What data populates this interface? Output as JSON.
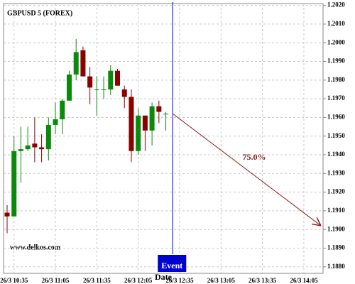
{
  "chart_data": {
    "type": "candlestick",
    "title": "GBPUSD 5 (FOREX)",
    "x_label": "Date",
    "watermark": "www.delkos.com",
    "categories": [
      null,
      "26/3 10:35",
      null,
      null,
      null,
      null,
      null,
      "26/3 11:05",
      null,
      null,
      null,
      null,
      null,
      "26/3 11:35",
      null,
      null,
      null,
      null,
      null,
      "26/3 12:05",
      null,
      null,
      null,
      null,
      null,
      "26/3 12:35",
      null,
      null,
      null,
      null,
      null,
      "26/3 13:05",
      null,
      null,
      null,
      null,
      null,
      "26/3 13:35",
      null,
      null,
      null,
      null,
      null,
      "26/3 14:05",
      null,
      null
    ],
    "open": [
      1.1909,
      1.1907,
      1.1942,
      1.1943,
      1.1946,
      1.1944,
      1.1943,
      1.1956,
      1.1959,
      1.1969,
      1.1983,
      1.1996,
      1.1982,
      1.1975,
      1.1975,
      1.1975,
      1.1985,
      1.1975,
      1.1971,
      1.1942,
      1.1961,
      1.1953,
      1.1966,
      1.1962,
      null,
      null,
      null,
      null,
      null,
      null,
      null,
      null,
      null,
      null,
      null,
      null,
      null,
      null,
      null,
      null,
      null,
      null,
      null,
      null,
      null,
      null
    ],
    "high": [
      1.1913,
      1.195,
      1.1955,
      1.1955,
      1.196,
      1.1951,
      1.196,
      1.1968,
      1.197,
      1.1985,
      1.2002,
      1.1998,
      1.1987,
      1.1982,
      1.1982,
      1.1988,
      1.1986,
      1.1977,
      1.1975,
      1.1965,
      1.1961,
      1.1968,
      1.1969,
      1.1963,
      null,
      null,
      null,
      null,
      null,
      null,
      null,
      null,
      null,
      null,
      null,
      null,
      null,
      null,
      null,
      null,
      null,
      null,
      null,
      null,
      null,
      null
    ],
    "low": [
      1.1898,
      1.1907,
      1.1925,
      1.1942,
      1.1936,
      1.1936,
      1.1937,
      1.1951,
      1.1951,
      1.1969,
      1.198,
      1.1982,
      1.1967,
      1.1961,
      1.197,
      1.1972,
      1.1977,
      1.1965,
      1.1936,
      1.194,
      1.1942,
      1.1945,
      1.1957,
      1.1953,
      null,
      null,
      null,
      null,
      null,
      null,
      null,
      null,
      null,
      null,
      null,
      null,
      null,
      null,
      null,
      null,
      null,
      null,
      null,
      null,
      null,
      null
    ],
    "close": [
      1.1907,
      1.1942,
      1.1943,
      1.1945,
      1.1944,
      1.1943,
      1.1956,
      1.1959,
      1.1969,
      1.1983,
      1.1995,
      1.1982,
      1.1976,
      1.1975,
      1.1975,
      1.1985,
      1.1977,
      1.1971,
      1.1942,
      1.1961,
      1.1953,
      1.1966,
      1.1963,
      1.1962,
      null,
      null,
      null,
      null,
      null,
      null,
      null,
      null,
      null,
      null,
      null,
      null,
      null,
      null,
      null,
      null,
      null,
      null,
      null,
      null,
      null,
      null
    ],
    "up_color": "#0a8a0a",
    "down_color": "#8b0000",
    "event": {
      "label": "Event",
      "color": "#0000cc"
    },
    "forecast": {
      "label": "75.0%",
      "value": 1.1902,
      "color": "#8b1a1a"
    },
    "ylim": [
      1.18765,
      1.2021
    ],
    "yticks": [
      {
        "value": 1.202,
        "label": "1.2020"
      },
      {
        "value": 1.201,
        "label": "1.2010"
      },
      {
        "value": 1.2,
        "label": "1.2000"
      },
      {
        "value": 1.199,
        "label": "1.1990"
      },
      {
        "value": 1.198,
        "label": "1.1980"
      },
      {
        "value": 1.197,
        "label": "1.1970"
      },
      {
        "value": 1.196,
        "label": "1.1960"
      },
      {
        "value": 1.195,
        "label": "1.1950"
      },
      {
        "value": 1.194,
        "label": "1.1940"
      },
      {
        "value": 1.193,
        "label": "1.1930"
      },
      {
        "value": 1.192,
        "label": "1.1920"
      },
      {
        "value": 1.191,
        "label": "1.1910"
      },
      {
        "value": 1.19,
        "label": "1.1900"
      },
      {
        "value": 1.189,
        "label": "1.1890"
      },
      {
        "value": 1.188,
        "label": "1.1880"
      }
    ],
    "grid": true
  }
}
